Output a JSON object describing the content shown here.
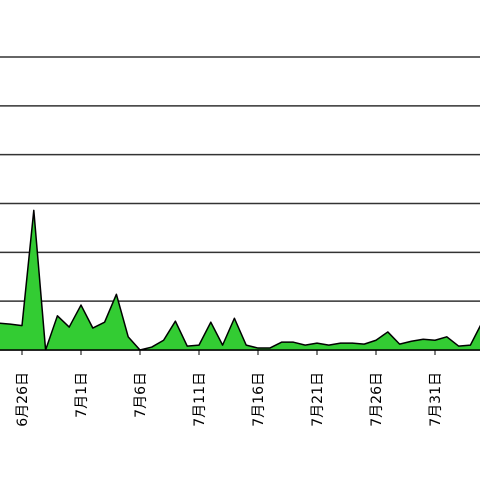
{
  "chart_data": {
    "type": "area",
    "categories": [
      null,
      null,
      "6月26日",
      null,
      null,
      null,
      null,
      "7月1日",
      null,
      null,
      null,
      null,
      "7月6日",
      null,
      null,
      null,
      null,
      "7月11日",
      null,
      null,
      null,
      null,
      "7月16日",
      null,
      null,
      null,
      null,
      "7月21日",
      null,
      null,
      null,
      null,
      "7月26日",
      null,
      null,
      null,
      null,
      "7月31日",
      null,
      null,
      null,
      null
    ],
    "values": [
      0.55,
      0.53,
      0.5,
      2.86,
      0,
      0.7,
      0.47,
      0.92,
      0.45,
      0.57,
      1.14,
      0.27,
      0,
      0.06,
      0.2,
      0.59,
      0.08,
      0.1,
      0.57,
      0.1,
      0.65,
      0.1,
      0.04,
      0.04,
      0.16,
      0.16,
      0.1,
      0.14,
      0.1,
      0.14,
      0.14,
      0.12,
      0.2,
      0.37,
      0.12,
      0.18,
      0.22,
      0.2,
      0.27,
      0.08,
      0.1,
      0.57
    ],
    "color": "#33cc33",
    "ylim": [
      0,
      6
    ],
    "yticks": [
      0,
      1,
      2,
      3,
      4,
      5,
      6
    ],
    "grid": true
  }
}
